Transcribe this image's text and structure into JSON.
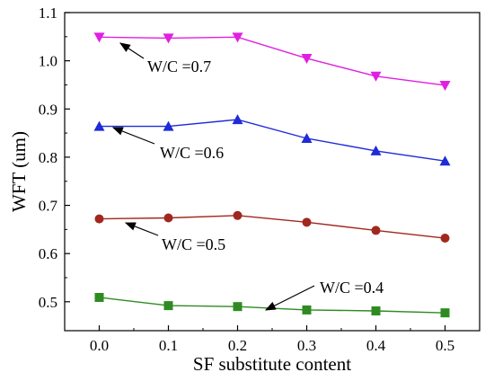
{
  "chart_data": {
    "type": "line",
    "xlabel": "SF substitute content",
    "ylabel": "WFT (um)",
    "xlim": [
      -0.05,
      0.55
    ],
    "ylim": [
      0.44,
      1.1
    ],
    "x_ticks": [
      "0.0",
      "0.1",
      "0.2",
      "0.3",
      "0.4",
      "0.5"
    ],
    "y_ticks": [
      "0.5",
      "0.6",
      "0.7",
      "0.8",
      "0.9",
      "1.0",
      "1.1"
    ],
    "x": [
      0.0,
      0.1,
      0.2,
      0.3,
      0.4,
      0.5
    ],
    "grid": false,
    "legend": "none",
    "series": [
      {
        "name": "W/C =0.4",
        "marker": "square",
        "color": "#2e8b22",
        "values": [
          0.509,
          0.492,
          0.49,
          0.483,
          0.481,
          0.477
        ]
      },
      {
        "name": "W/C =0.5",
        "marker": "circle",
        "color": "#a0281e",
        "values": [
          0.672,
          0.674,
          0.679,
          0.665,
          0.648,
          0.632
        ]
      },
      {
        "name": "W/C =0.6",
        "marker": "triangle-up",
        "color": "#1f2bd6",
        "values": [
          0.864,
          0.864,
          0.878,
          0.839,
          0.813,
          0.792
        ]
      },
      {
        "name": "W/C =0.7",
        "marker": "triangle-down",
        "color": "#e020e0",
        "values": [
          1.049,
          1.047,
          1.049,
          1.005,
          0.968,
          0.949
        ]
      }
    ],
    "annotations": [
      {
        "text": "W/C =0.7",
        "series": 3,
        "point": 0
      },
      {
        "text": "W/C =0.6",
        "series": 2,
        "point": 0
      },
      {
        "text": "W/C =0.5",
        "series": 1,
        "point": 0
      },
      {
        "text": "W/C =0.4",
        "series": 0,
        "point": 2
      }
    ]
  }
}
